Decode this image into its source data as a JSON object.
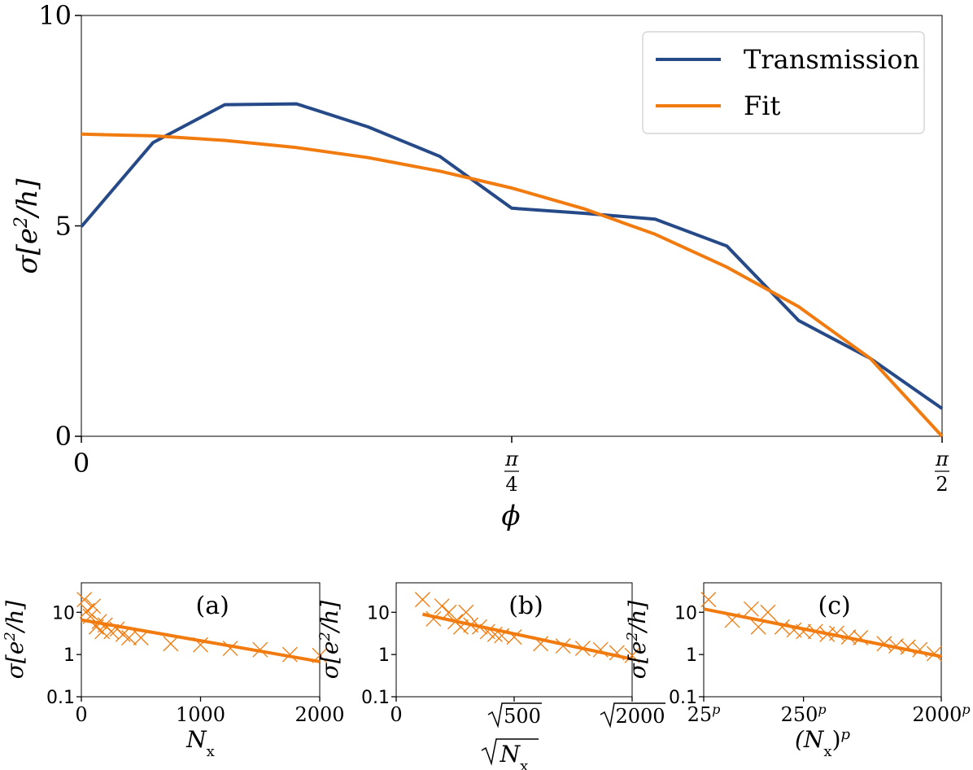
{
  "chart_data": [
    {
      "type": "line",
      "xlabel": "ϕ",
      "ylabel_main": "σ[e",
      "ylabel_sup": "2",
      "ylabel_tail": "/h]",
      "ylim": [
        0,
        10
      ],
      "xlim": [
        0,
        1.5708
      ],
      "yticks": [
        {
          "value": 0,
          "label": "0"
        },
        {
          "value": 5,
          "label": "5"
        },
        {
          "value": 10,
          "label": "10"
        }
      ],
      "xticks": [
        {
          "value": 0,
          "num": "0",
          "den": ""
        },
        {
          "value": 0.7854,
          "num": "π",
          "den": "4"
        },
        {
          "value": 1.5708,
          "num": "π",
          "den": "2"
        }
      ],
      "series": [
        {
          "name": "Transmission",
          "color": "#264a87",
          "x": [
            0,
            0.1309,
            0.2618,
            0.3927,
            0.5236,
            0.6545,
            0.7854,
            0.9163,
            1.0472,
            1.1781,
            1.309,
            1.4399,
            1.5708
          ],
          "y": [
            4.98,
            6.98,
            7.88,
            7.9,
            7.35,
            6.65,
            5.42,
            5.3,
            5.16,
            4.52,
            2.75,
            1.85,
            0.66
          ]
        },
        {
          "name": "Fit",
          "color": "#f27b0f",
          "x": [
            0,
            0.1309,
            0.2618,
            0.3927,
            0.5236,
            0.6545,
            0.7854,
            0.9163,
            1.0472,
            1.1781,
            1.309,
            1.4399,
            1.5708
          ],
          "y": [
            7.18,
            7.14,
            7.03,
            6.86,
            6.62,
            6.3,
            5.9,
            5.41,
            4.8,
            4.02,
            3.08,
            1.85,
            0.0
          ]
        }
      ]
    },
    {
      "type": "scatter",
      "panel_label": "(a)",
      "xlabel_main": "N",
      "xlabel_sub": "x",
      "ylabel_main": "σ[e",
      "ylabel_sup": "2",
      "ylabel_tail": "/h]",
      "xlim": [
        0,
        2000
      ],
      "ylim": [
        0.1,
        50
      ],
      "yticks": [
        {
          "value": 0.1,
          "label": "0.1"
        },
        {
          "value": 1,
          "label": "1"
        },
        {
          "value": 10,
          "label": "10"
        }
      ],
      "xticks": [
        {
          "value": 0,
          "label": "0"
        },
        {
          "value": 1000,
          "label": "1000"
        },
        {
          "value": 2000,
          "label": "2000"
        }
      ],
      "color": "#f27b0f",
      "points_x": [
        25,
        50,
        75,
        100,
        125,
        150,
        175,
        200,
        250,
        300,
        350,
        400,
        500,
        750,
        1000,
        1250,
        1500,
        1750,
        2000
      ],
      "points_y": [
        20,
        11,
        8,
        14,
        4.5,
        6,
        3.5,
        5,
        3.5,
        4,
        3,
        2.5,
        2.5,
        1.8,
        1.7,
        1.4,
        1.3,
        1.0,
        0.95
      ],
      "fit_x": [
        0,
        2000
      ],
      "fit_y": [
        6.6,
        0.68
      ]
    },
    {
      "type": "scatter",
      "panel_label": "(b)",
      "xlabel_main": "N",
      "xlabel_sub": "x",
      "ylabel_main": "σ[e",
      "ylabel_sup": "2",
      "ylabel_tail": "/h]",
      "xlim": [
        0,
        44.72
      ],
      "ylim": [
        0.1,
        50
      ],
      "yticks": [
        {
          "value": 0.1,
          "label": "0.1"
        },
        {
          "value": 1,
          "label": "1"
        },
        {
          "value": 10,
          "label": "10"
        }
      ],
      "xticks": [
        {
          "value": 0,
          "label": "0"
        },
        {
          "value": 22.36,
          "label": "500"
        },
        {
          "value": 44.72,
          "label": "2000"
        }
      ],
      "color": "#f27b0f",
      "points_x": [
        5,
        7.07,
        8.66,
        10,
        11.18,
        12.25,
        13.23,
        14.14,
        15.81,
        17.32,
        18.71,
        20,
        22.36,
        27.39,
        31.62,
        35.36,
        38.73,
        41.83,
        44.72
      ],
      "points_y": [
        20,
        7,
        14,
        10,
        6,
        4.5,
        10,
        5,
        4.5,
        3.5,
        3,
        2.8,
        2.6,
        1.8,
        1.6,
        1.4,
        1.3,
        1.1,
        0.95
      ],
      "fit_x": [
        5,
        44.72
      ],
      "fit_y": [
        9.0,
        0.78
      ]
    },
    {
      "type": "scatter",
      "panel_label": "(c)",
      "xlabel_main": "(N",
      "xlabel_sub": "x",
      "xlabel_tail": ")",
      "xlabel_sup": "p",
      "ylabel_main": "σ[e",
      "ylabel_sup": "2",
      "ylabel_tail": "/h]",
      "xlim": [
        0,
        1
      ],
      "ylim": [
        0.1,
        50
      ],
      "yticks": [
        {
          "value": 0.1,
          "label": "0.1"
        },
        {
          "value": 1,
          "label": "1"
        },
        {
          "value": 10,
          "label": "10"
        }
      ],
      "xticks": [
        {
          "value": 0,
          "base": "25",
          "sup": "p"
        },
        {
          "value": 0.42,
          "base": "250",
          "sup": "p"
        },
        {
          "value": 1,
          "base": "2000",
          "sup": "p"
        }
      ],
      "color": "#f27b0f",
      "points_x": [
        0.02,
        0.12,
        0.2,
        0.23,
        0.27,
        0.33,
        0.38,
        0.42,
        0.47,
        0.52,
        0.56,
        0.61,
        0.66,
        0.76,
        0.81,
        0.86,
        0.91,
        0.97
      ],
      "points_y": [
        20,
        6.5,
        12,
        4.5,
        10,
        4.5,
        3.8,
        3.5,
        3.5,
        3.0,
        3.2,
        2.6,
        2.5,
        1.8,
        1.6,
        1.5,
        1.3,
        1.05
      ],
      "fit_x": [
        0,
        1
      ],
      "fit_y": [
        12,
        0.9
      ]
    }
  ]
}
